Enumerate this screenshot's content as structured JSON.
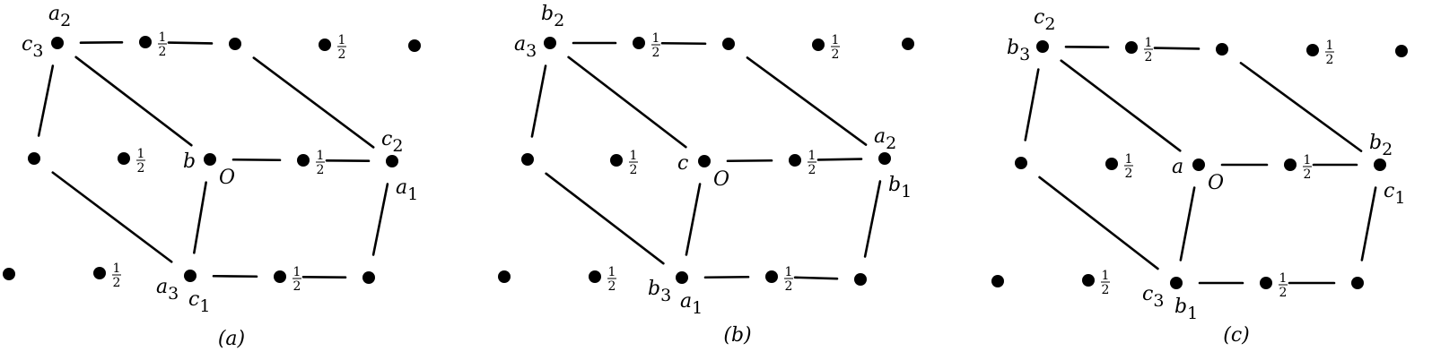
{
  "panels": [
    {
      "caption": "(a)",
      "origin_label": "O",
      "half": "1/2",
      "labels": {
        "top_back_left_upper": "a2",
        "top_back_left_side": "c3",
        "center_left": "b",
        "front_right_upper": "c2",
        "front_right_lower": "a1",
        "bottom_front_left_side": "a3",
        "bottom_front_left_lower": "c1"
      }
    },
    {
      "caption": "(b)",
      "origin_label": "O",
      "half": "1/2",
      "labels": {
        "top_back_left_upper": "b2",
        "top_back_left_side": "a3",
        "center_left": "c",
        "front_right_upper": "a2",
        "front_right_lower": "b1",
        "bottom_front_left_side": "b3",
        "bottom_front_left_lower": "a1"
      }
    },
    {
      "caption": "(c)",
      "origin_label": "O",
      "half": "1/2",
      "labels": {
        "top_back_left_upper": "c2",
        "top_back_left_side": "b3",
        "center_left": "a",
        "front_right_upper": "b2",
        "front_right_lower": "c1",
        "bottom_front_left_side": "c3",
        "bottom_front_left_lower": "b1"
      }
    }
  ]
}
